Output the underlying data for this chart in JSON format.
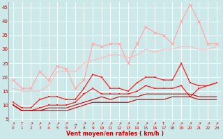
{
  "x": [
    0,
    1,
    2,
    3,
    4,
    5,
    6,
    7,
    8,
    9,
    10,
    11,
    12,
    13,
    14,
    15,
    16,
    17,
    18,
    19,
    20,
    21,
    22,
    23
  ],
  "line1_y": [
    19,
    16,
    16,
    22,
    19,
    24,
    23,
    16,
    19,
    32,
    31,
    32,
    32,
    25,
    32,
    38,
    36,
    35,
    32,
    40,
    46,
    40,
    32,
    32
  ],
  "line2_y": [
    16,
    15,
    15,
    15,
    17,
    22,
    22,
    22,
    25,
    26,
    27,
    28,
    28,
    27,
    28,
    30,
    29,
    30,
    30,
    31,
    31,
    30,
    30,
    31
  ],
  "line3_y": [
    11,
    9,
    9,
    12,
    13,
    13,
    12,
    12,
    16,
    21,
    20,
    16,
    16,
    15,
    18,
    20,
    20,
    19,
    19,
    25,
    18,
    17,
    17,
    18
  ],
  "line4_y": [
    10,
    8,
    8,
    9,
    10,
    10,
    10,
    11,
    14,
    16,
    14,
    14,
    14,
    14,
    15,
    17,
    16,
    16,
    16,
    17,
    13,
    16,
    17,
    18
  ],
  "line5_y": [
    10,
    8,
    8,
    8,
    9,
    9,
    9,
    10,
    11,
    12,
    13,
    12,
    13,
    13,
    13,
    14,
    14,
    14,
    14,
    14,
    14,
    13,
    13,
    13
  ],
  "line6_y": [
    10,
    8,
    8,
    8,
    8,
    8,
    8,
    9,
    10,
    11,
    11,
    11,
    11,
    11,
    12,
    12,
    12,
    12,
    13,
    13,
    13,
    12,
    12,
    12
  ],
  "background_color": "#cce8e8",
  "grid_color": "#aad4d4",
  "line1_color": "#ffaaaa",
  "line2_color": "#ffbbbb",
  "line3_color": "#ff2020",
  "line4_color": "#ff2020",
  "line5_color": "#cc0000",
  "line6_color": "#cc0000",
  "xlabel": "Vent moyen/en rafales ( km/h )",
  "ylabel_ticks": [
    5,
    10,
    15,
    20,
    25,
    30,
    35,
    40,
    45
  ],
  "xlim": [
    -0.5,
    23.5
  ],
  "ylim": [
    4,
    47
  ],
  "wind_arrows": [
    "↗",
    "↑",
    "↗",
    "↗",
    "↗",
    "↗",
    "↗",
    "→",
    "↗",
    "↗",
    "↗",
    "↗",
    "↗",
    "↗",
    "↗",
    "↗",
    "↗",
    "↑",
    "↗",
    "↗",
    "↗",
    "↗",
    "↗",
    "↗"
  ]
}
